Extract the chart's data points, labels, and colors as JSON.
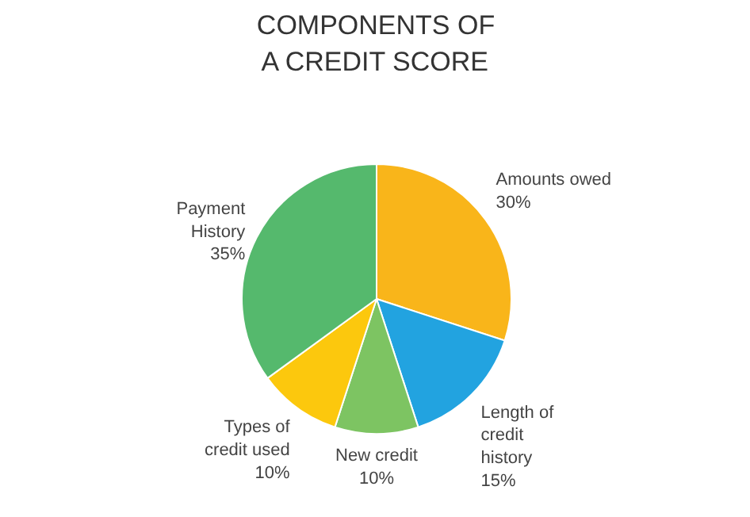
{
  "chart_data": {
    "type": "pie",
    "title": "COMPONENTS OF A CREDIT SCORE",
    "categories": [
      "Amounts owed",
      "Length of credit history",
      "New credit",
      "Types of credit used",
      "Payment History"
    ],
    "values": [
      30,
      15,
      10,
      10,
      35
    ],
    "colors": [
      "#f9b51a",
      "#22a3e0",
      "#7dc462",
      "#fcc80d",
      "#55b96d"
    ],
    "value_labels": [
      "30%",
      "15%",
      "10%",
      "10%",
      "35%"
    ]
  }
}
